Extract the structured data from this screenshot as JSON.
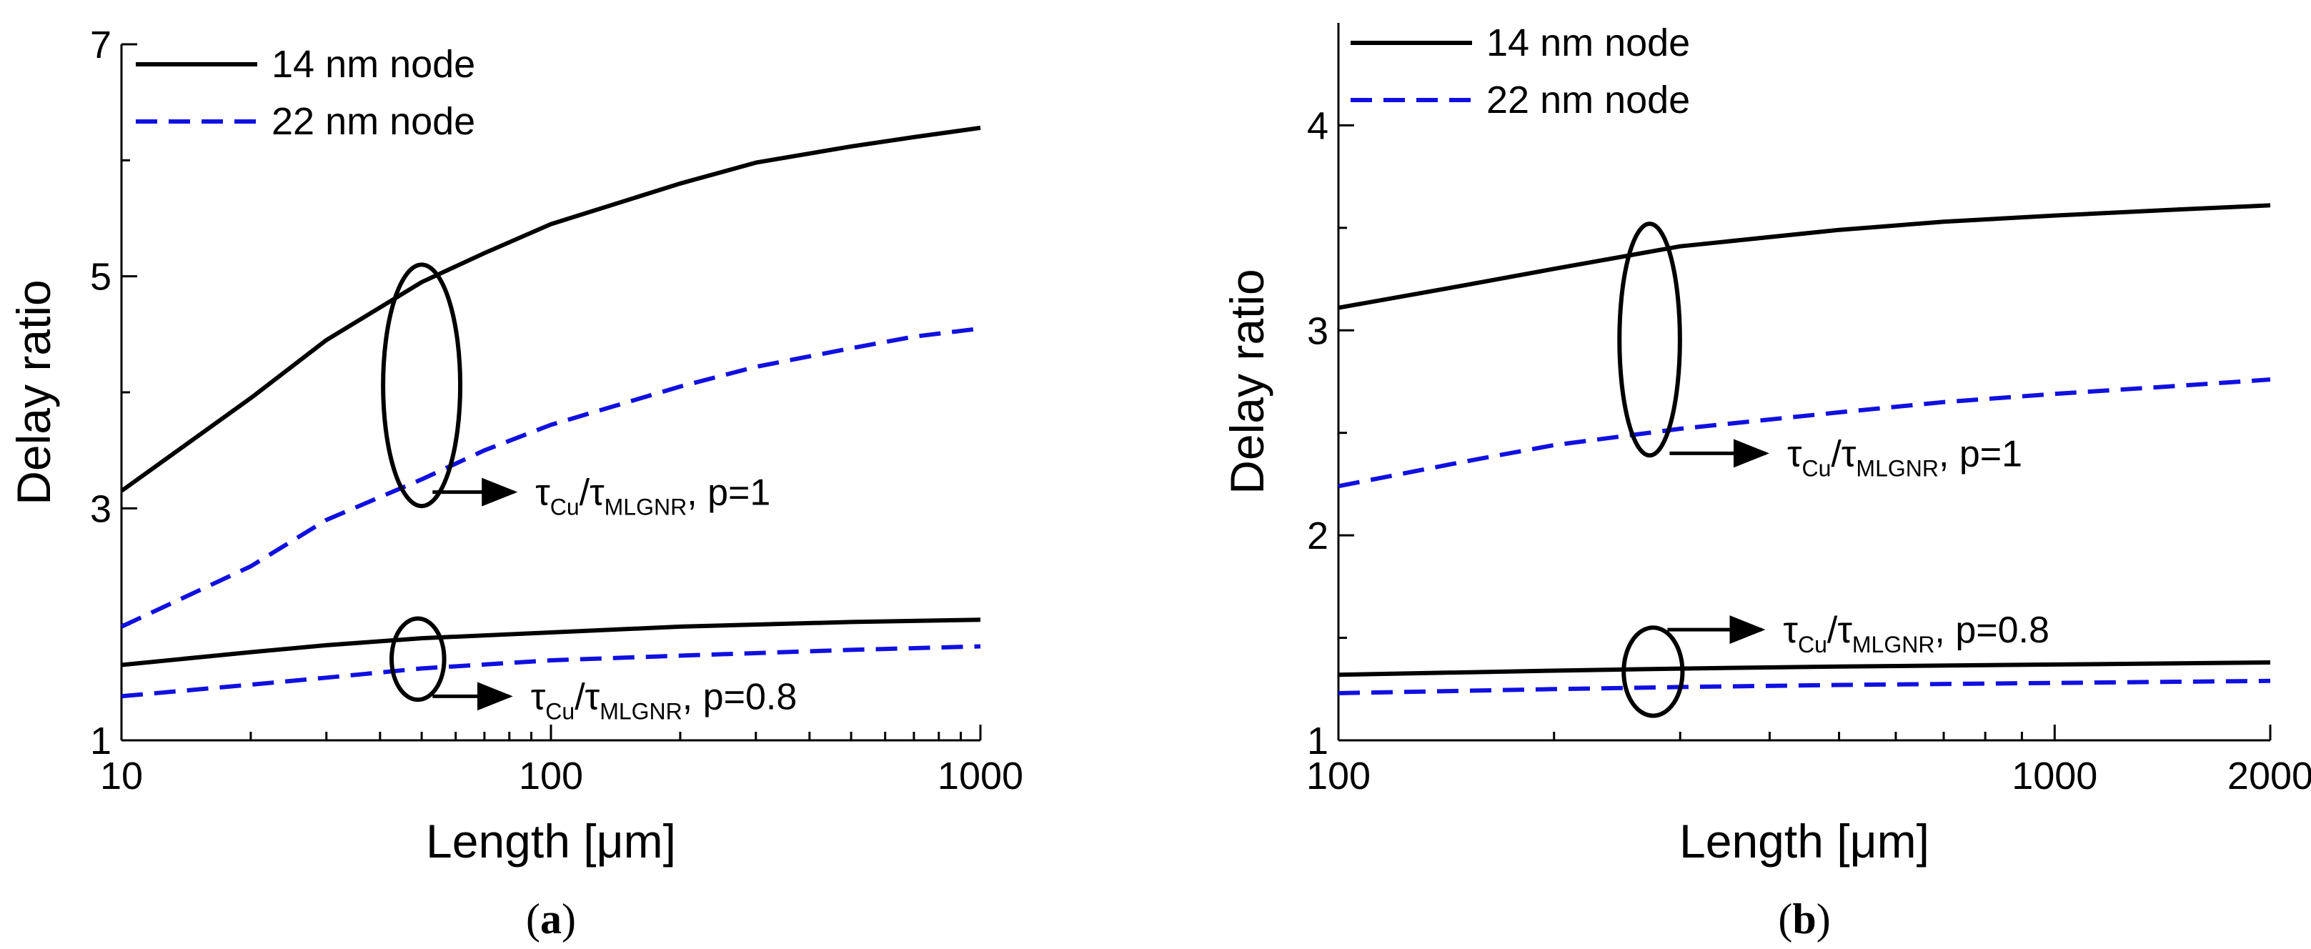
{
  "chart_data": [
    {
      "type": "line",
      "panel_label": "a",
      "xscale": "log",
      "xlim": [
        10,
        1000
      ],
      "ylim": [
        1,
        7
      ],
      "xticks": [
        {
          "value": 10,
          "label": "10"
        },
        {
          "value": 100,
          "label": "100"
        },
        {
          "value": 1000,
          "label": "1000"
        }
      ],
      "yticks": [
        {
          "value": 1,
          "label": "1"
        },
        {
          "value": 3,
          "label": "3"
        },
        {
          "value": 5,
          "label": "5"
        },
        {
          "value": 7,
          "label": "7"
        }
      ],
      "xlabel": "Length [μm]",
      "ylabel": "Delay ratio",
      "legend": {
        "position": "top-left",
        "entries": [
          {
            "label": "14 nm node",
            "style": "solid",
            "color": "#000000"
          },
          {
            "label": "22 nm node",
            "style": "dashed",
            "color": "#1010e0"
          }
        ]
      },
      "series": [
        {
          "name": "14 nm node, p=1",
          "style": "solid",
          "color": "#000000",
          "x": [
            10,
            20,
            30,
            50,
            70,
            100,
            200,
            300,
            500,
            700,
            1000
          ],
          "y": [
            3.15,
            3.95,
            4.45,
            4.95,
            5.2,
            5.45,
            5.8,
            5.98,
            6.12,
            6.2,
            6.28
          ]
        },
        {
          "name": "22 nm node, p=1",
          "style": "dashed",
          "color": "#1010e0",
          "x": [
            10,
            20,
            30,
            50,
            70,
            100,
            200,
            300,
            500,
            700,
            1000
          ],
          "y": [
            1.98,
            2.5,
            2.9,
            3.25,
            3.5,
            3.72,
            4.05,
            4.22,
            4.38,
            4.48,
            4.55
          ]
        },
        {
          "name": "14 nm node, p=0.8",
          "style": "solid",
          "color": "#000000",
          "x": [
            10,
            20,
            30,
            50,
            100,
            200,
            500,
            1000
          ],
          "y": [
            1.65,
            1.76,
            1.82,
            1.88,
            1.93,
            1.98,
            2.02,
            2.04
          ]
        },
        {
          "name": "22 nm node, p=0.8",
          "style": "dashed",
          "color": "#1010e0",
          "x": [
            10,
            20,
            30,
            50,
            100,
            200,
            500,
            1000
          ],
          "y": [
            1.38,
            1.48,
            1.54,
            1.62,
            1.69,
            1.73,
            1.78,
            1.81
          ]
        }
      ],
      "annotations": [
        {
          "base": "τ",
          "sub1": "Cu",
          "slash": "/",
          "base2": "τ",
          "sub2": "MLGNR",
          "rest": ", p=1",
          "ellipse": {
            "x": 50,
            "y_top": 5.1,
            "y_bottom": 3.02,
            "x_left": 41,
            "x_right": 62
          },
          "arrow_from": {
            "x": 53,
            "y": 3.14
          },
          "arrow_to": {
            "x": 82,
            "y": 3.14
          }
        },
        {
          "base": "τ",
          "sub1": "Cu",
          "slash": "/",
          "base2": "τ",
          "sub2": "MLGNR",
          "rest": ", p=0.8",
          "ellipse": {
            "x": 49,
            "y_top": 2.05,
            "y_bottom": 1.35,
            "x_left": 43,
            "x_right": 57
          },
          "arrow_from": {
            "x": 53,
            "y": 1.38
          },
          "arrow_to": {
            "x": 80,
            "y": 1.38
          }
        }
      ]
    },
    {
      "type": "line",
      "panel_label": "b",
      "xscale": "log",
      "xlim": [
        100,
        2000
      ],
      "ylim": [
        1,
        4.5
      ],
      "xticks": [
        {
          "value": 100,
          "label": "100"
        },
        {
          "value": 1000,
          "label": "1000"
        },
        {
          "value": 2000,
          "label": "2000"
        }
      ],
      "yticks": [
        {
          "value": 1,
          "label": "1"
        },
        {
          "value": 2,
          "label": "2"
        },
        {
          "value": 3,
          "label": "3"
        },
        {
          "value": 4,
          "label": "4"
        }
      ],
      "xlabel": "Length [μm]",
      "ylabel": "Delay ratio",
      "legend": {
        "position": "top-left",
        "entries": [
          {
            "label": "14 nm node",
            "style": "solid",
            "color": "#000000"
          },
          {
            "label": "22 nm node",
            "style": "dashed",
            "color": "#1010e0"
          }
        ]
      },
      "series": [
        {
          "name": "14 nm node, p=1",
          "style": "solid",
          "color": "#000000",
          "x": [
            100,
            150,
            200,
            300,
            500,
            700,
            1000,
            1500,
            2000
          ],
          "y": [
            3.11,
            3.22,
            3.3,
            3.41,
            3.49,
            3.53,
            3.56,
            3.59,
            3.61
          ]
        },
        {
          "name": "22 nm node, p=1",
          "style": "dashed",
          "color": "#1010e0",
          "x": [
            100,
            150,
            200,
            300,
            500,
            700,
            1000,
            1500,
            2000
          ],
          "y": [
            2.24,
            2.36,
            2.44,
            2.52,
            2.6,
            2.65,
            2.69,
            2.73,
            2.76
          ]
        },
        {
          "name": "14 nm node, p=0.8",
          "style": "solid",
          "color": "#000000",
          "x": [
            100,
            200,
            300,
            500,
            1000,
            2000
          ],
          "y": [
            1.32,
            1.34,
            1.35,
            1.36,
            1.37,
            1.38
          ]
        },
        {
          "name": "22 nm node, p=0.8",
          "style": "dashed",
          "color": "#1010e0",
          "x": [
            100,
            200,
            300,
            500,
            1000,
            2000
          ],
          "y": [
            1.23,
            1.25,
            1.26,
            1.27,
            1.28,
            1.29
          ]
        }
      ],
      "annotations": [
        {
          "base": "τ",
          "sub1": "Cu",
          "slash": "/",
          "base2": "τ",
          "sub2": "MLGNR",
          "rest": ", p=1",
          "ellipse": {
            "x": 272,
            "y_top": 3.52,
            "y_bottom": 2.39,
            "x_left": 247,
            "x_right": 300
          },
          "arrow_from": {
            "x": 290,
            "y": 2.4
          },
          "arrow_to": {
            "x": 395,
            "y": 2.4
          }
        },
        {
          "base": "τ",
          "sub1": "Cu",
          "slash": "/",
          "base2": "τ",
          "sub2": "MLGNR",
          "rest": ", p=0.8",
          "ellipse": {
            "x": 275,
            "y_top": 1.55,
            "y_bottom": 1.12,
            "x_left": 250,
            "x_right": 302
          },
          "arrow_from": {
            "x": 288,
            "y": 1.54
          },
          "arrow_to": {
            "x": 390,
            "y": 1.54
          }
        }
      ]
    }
  ]
}
